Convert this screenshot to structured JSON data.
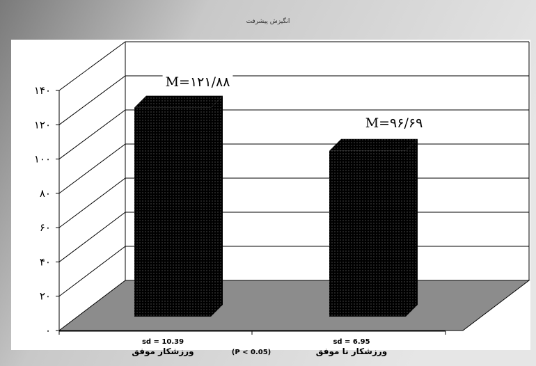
{
  "chart_data": {
    "type": "bar",
    "title": "انگیزش پیشرفت",
    "categories": [
      "ورزشکار موفق",
      "ورزشکار نا موفق"
    ],
    "values": [
      121.88,
      96.69
    ],
    "value_labels": [
      "M=۱۲۱/۸۸",
      "M=۹۶/۶۹"
    ],
    "sd_labels": [
      "sd = 10.39",
      "sd = 6.95"
    ],
    "p_value_label": "(P < 0.05)",
    "ylim": [
      0,
      140
    ],
    "yticks": [
      0,
      20,
      40,
      60,
      80,
      100,
      120,
      140
    ],
    "ytick_labels": [
      "۰",
      "۲۰",
      "۴۰",
      "۶۰",
      "۸۰",
      "۱۰۰",
      "۱۲۰",
      "۱۴۰"
    ],
    "grid": true,
    "style": "3d",
    "colors": {
      "bar": "#000000",
      "bar_dots": "#4a4a4a",
      "floor": "#8c8c8c",
      "frame_bg": "#b4b4b4",
      "plot_bg": "#ffffff",
      "gridline": "#000000"
    }
  }
}
